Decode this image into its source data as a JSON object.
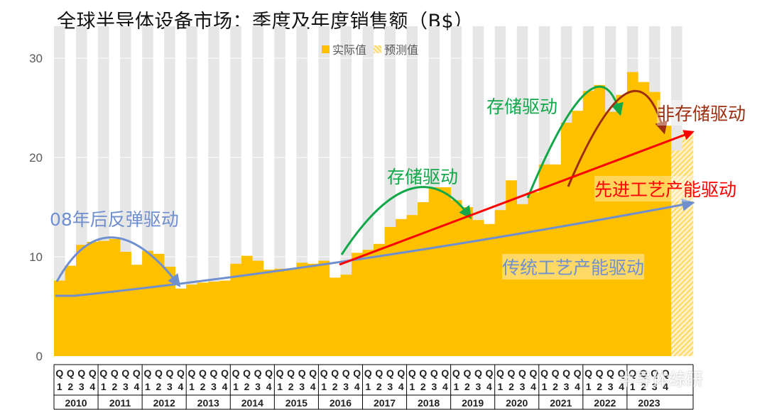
{
  "title": "全球半导体设备市场：季度及年度销售额（B$）",
  "legend": {
    "actual": "实际值",
    "forecast": "预测值"
  },
  "colors": {
    "actual": "#FFC000",
    "forecast": "#FFD966",
    "blue_arrow": "#6F8FCF",
    "green_arrow": "#12A84A",
    "red_arrow": "#FF0000",
    "brown_arrow": "#9C2E0F"
  },
  "annotations": {
    "rebound": "08年后反弹驱动",
    "storage1": "存储驱动",
    "storage2": "存储驱动",
    "non_storage": "非存储驱动",
    "advanced": "先进工艺产能驱动",
    "traditional": "传统工艺产能驱动"
  },
  "watermark": "半导体综研",
  "chart_data": {
    "type": "bar",
    "ylim": [
      0,
      30
    ],
    "yticks": [
      0,
      10,
      20,
      30
    ],
    "quarter_labels": [
      "Q1",
      "Q2",
      "Q3",
      "Q4"
    ],
    "years": [
      "2010",
      "2011",
      "2012",
      "2013",
      "2014",
      "2015",
      "2016",
      "2017",
      "2018",
      "2019",
      "2020",
      "2021",
      "2022",
      "2023"
    ],
    "values": [
      7.6,
      9.1,
      11.2,
      11.5,
      11.6,
      11.8,
      10.5,
      9.2,
      10.6,
      10.3,
      9.0,
      6.8,
      7.2,
      7.4,
      7.5,
      7.6,
      9.3,
      10.1,
      9.6,
      8.7,
      8.8,
      8.8,
      9.4,
      9.3,
      9.6,
      7.9,
      8.2,
      10.4,
      10.7,
      11.3,
      13.0,
      13.8,
      14.2,
      15.5,
      17.0,
      17.0,
      15.7,
      15.0,
      13.7,
      13.3,
      14.7,
      17.7,
      15.3,
      16.5,
      19.3,
      19.3,
      23.5,
      24.7,
      26.7,
      27.3,
      24.6,
      26.3,
      28.6,
      27.6,
      26.6,
      23.2,
      20.7,
      22.6
    ],
    "forecast_start_index": 56
  }
}
